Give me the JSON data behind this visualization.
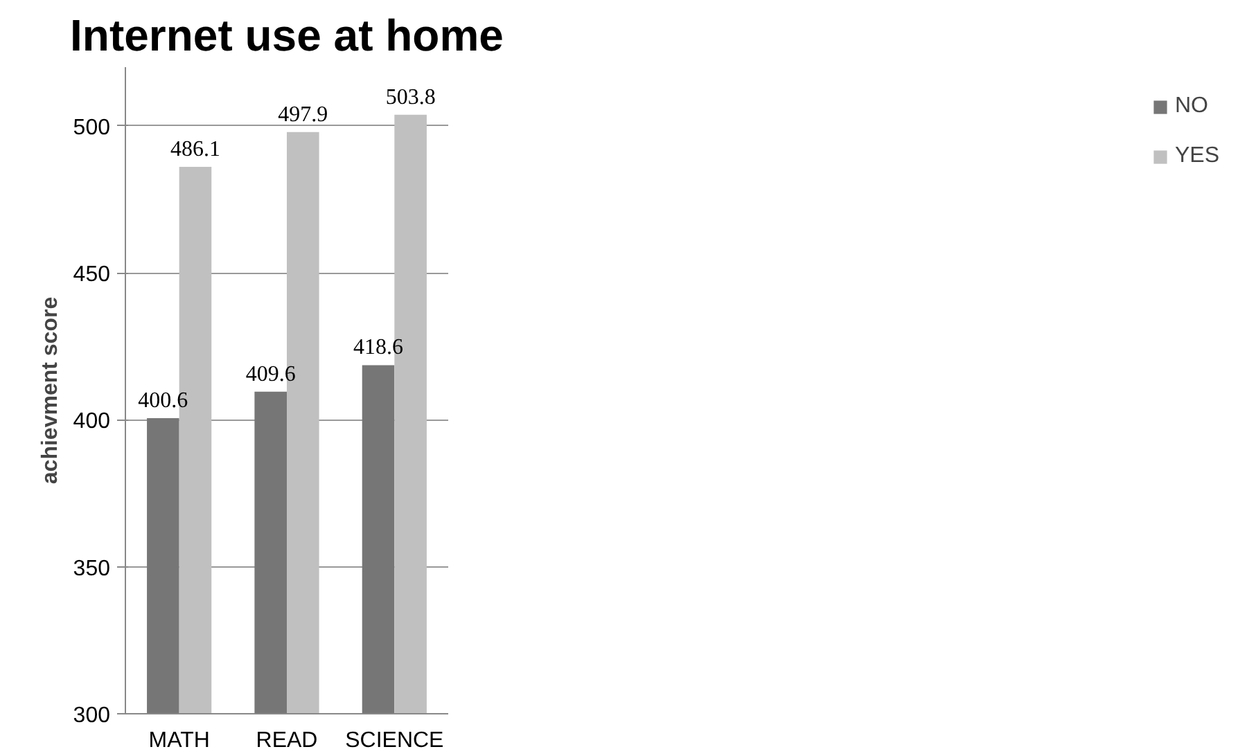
{
  "chart_data": {
    "type": "bar",
    "title": "Internet use at home",
    "ylabel": "achievment score",
    "categories": [
      "MATH",
      "READ",
      "SCIENCE"
    ],
    "series": [
      {
        "name": "NO",
        "color": "#767676",
        "values": [
          400.6,
          409.6,
          418.6
        ]
      },
      {
        "name": "YES",
        "color": "#c0c0c0",
        "values": [
          486.1,
          497.9,
          503.8
        ]
      }
    ],
    "ylim": [
      300,
      520
    ],
    "yticks": [
      300,
      350,
      400,
      450,
      500
    ],
    "grid": "y",
    "legend": "right",
    "data_labels": true
  }
}
